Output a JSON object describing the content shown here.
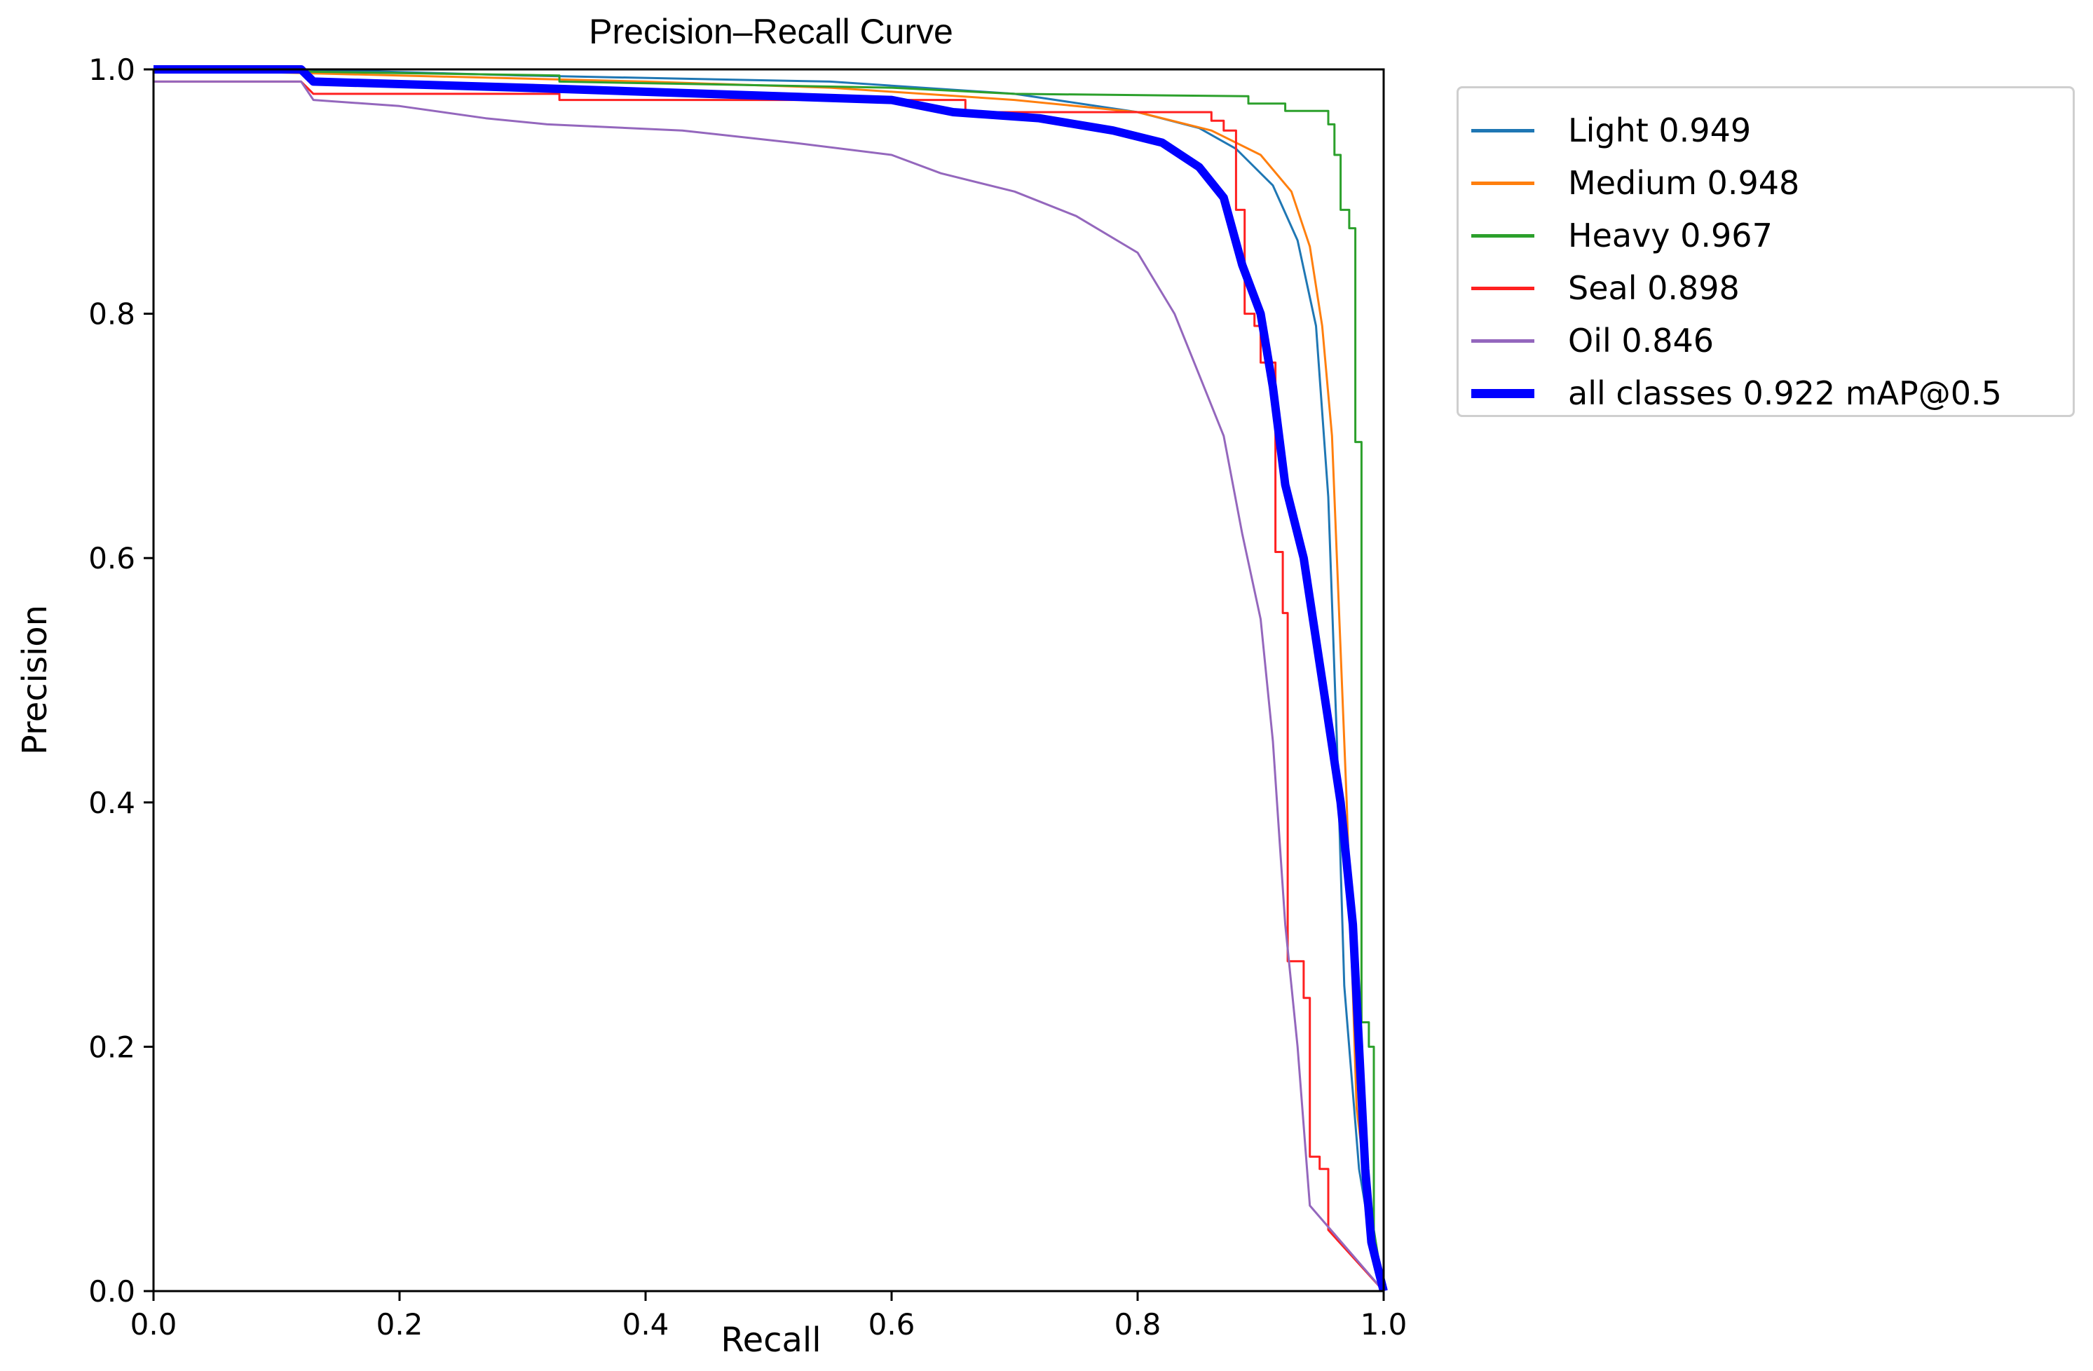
{
  "chart_data": {
    "type": "line",
    "title": "Precision–Recall Curve",
    "xlabel": "Recall",
    "ylabel": "Precision",
    "xlim": [
      0,
      1
    ],
    "ylim": [
      0,
      1
    ],
    "xticks": [
      "0.0",
      "0.2",
      "0.4",
      "0.6",
      "0.8",
      "1.0"
    ],
    "yticks": [
      "0.0",
      "0.2",
      "0.4",
      "0.6",
      "0.8",
      "1.0"
    ],
    "grid": false,
    "legend_position": "outside upper right",
    "series": [
      {
        "name": "Light 0.949",
        "color": "#1f77b4",
        "width": 3,
        "points": [
          [
            0,
            1.0
          ],
          [
            0.12,
            1.0
          ],
          [
            0.3,
            0.995
          ],
          [
            0.55,
            0.99
          ],
          [
            0.7,
            0.98
          ],
          [
            0.8,
            0.965
          ],
          [
            0.85,
            0.952
          ],
          [
            0.88,
            0.935
          ],
          [
            0.91,
            0.905
          ],
          [
            0.93,
            0.86
          ],
          [
            0.945,
            0.79
          ],
          [
            0.955,
            0.65
          ],
          [
            0.962,
            0.45
          ],
          [
            0.968,
            0.25
          ],
          [
            0.98,
            0.1
          ],
          [
            0.99,
            0.04
          ],
          [
            1.0,
            0.0
          ]
        ]
      },
      {
        "name": "Medium 0.948",
        "color": "#ff7f0e",
        "width": 3,
        "points": [
          [
            0,
            1.0
          ],
          [
            0.2,
            0.995
          ],
          [
            0.4,
            0.99
          ],
          [
            0.55,
            0.985
          ],
          [
            0.7,
            0.975
          ],
          [
            0.8,
            0.965
          ],
          [
            0.86,
            0.95
          ],
          [
            0.9,
            0.93
          ],
          [
            0.925,
            0.9
          ],
          [
            0.94,
            0.855
          ],
          [
            0.95,
            0.79
          ],
          [
            0.958,
            0.7
          ],
          [
            0.962,
            0.6
          ],
          [
            0.97,
            0.4
          ],
          [
            0.978,
            0.15
          ],
          [
            0.99,
            0.05
          ],
          [
            1.0,
            0.0
          ]
        ]
      },
      {
        "name": "Heavy 0.967",
        "color": "#2ca02c",
        "width": 3,
        "points": [
          [
            0,
            1.0
          ],
          [
            0.33,
            0.995
          ],
          [
            0.33,
            0.99
          ],
          [
            0.6,
            0.985
          ],
          [
            0.7,
            0.98
          ],
          [
            0.89,
            0.978
          ],
          [
            0.89,
            0.972
          ],
          [
            0.92,
            0.972
          ],
          [
            0.92,
            0.966
          ],
          [
            0.955,
            0.966
          ],
          [
            0.955,
            0.955
          ],
          [
            0.96,
            0.955
          ],
          [
            0.96,
            0.93
          ],
          [
            0.965,
            0.93
          ],
          [
            0.965,
            0.885
          ],
          [
            0.972,
            0.885
          ],
          [
            0.972,
            0.87
          ],
          [
            0.977,
            0.87
          ],
          [
            0.977,
            0.695
          ],
          [
            0.982,
            0.695
          ],
          [
            0.982,
            0.22
          ],
          [
            0.988,
            0.22
          ],
          [
            0.988,
            0.2
          ],
          [
            0.992,
            0.2
          ],
          [
            0.992,
            0.05
          ],
          [
            1.0,
            0.0
          ]
        ]
      },
      {
        "name": "Seal 0.898",
        "color": "#ff2020",
        "width": 3,
        "points": [
          [
            0,
            0.99
          ],
          [
            0.12,
            0.99
          ],
          [
            0.13,
            0.98
          ],
          [
            0.33,
            0.98
          ],
          [
            0.33,
            0.975
          ],
          [
            0.66,
            0.975
          ],
          [
            0.66,
            0.965
          ],
          [
            0.86,
            0.965
          ],
          [
            0.86,
            0.958
          ],
          [
            0.87,
            0.958
          ],
          [
            0.87,
            0.95
          ],
          [
            0.88,
            0.95
          ],
          [
            0.88,
            0.885
          ],
          [
            0.887,
            0.885
          ],
          [
            0.887,
            0.8
          ],
          [
            0.895,
            0.8
          ],
          [
            0.895,
            0.79
          ],
          [
            0.9,
            0.79
          ],
          [
            0.9,
            0.76
          ],
          [
            0.912,
            0.76
          ],
          [
            0.912,
            0.605
          ],
          [
            0.918,
            0.605
          ],
          [
            0.918,
            0.555
          ],
          [
            0.922,
            0.555
          ],
          [
            0.922,
            0.27
          ],
          [
            0.935,
            0.27
          ],
          [
            0.935,
            0.24
          ],
          [
            0.94,
            0.24
          ],
          [
            0.94,
            0.11
          ],
          [
            0.948,
            0.11
          ],
          [
            0.948,
            0.1
          ],
          [
            0.955,
            0.1
          ],
          [
            0.955,
            0.05
          ],
          [
            1.0,
            0.0
          ]
        ]
      },
      {
        "name": "Oil 0.846",
        "color": "#9467bd",
        "width": 3,
        "points": [
          [
            0,
            0.99
          ],
          [
            0.12,
            0.99
          ],
          [
            0.13,
            0.975
          ],
          [
            0.2,
            0.97
          ],
          [
            0.27,
            0.96
          ],
          [
            0.32,
            0.955
          ],
          [
            0.43,
            0.95
          ],
          [
            0.52,
            0.94
          ],
          [
            0.6,
            0.93
          ],
          [
            0.64,
            0.915
          ],
          [
            0.7,
            0.9
          ],
          [
            0.75,
            0.88
          ],
          [
            0.8,
            0.85
          ],
          [
            0.83,
            0.8
          ],
          [
            0.85,
            0.75
          ],
          [
            0.87,
            0.7
          ],
          [
            0.885,
            0.62
          ],
          [
            0.9,
            0.55
          ],
          [
            0.91,
            0.45
          ],
          [
            0.92,
            0.3
          ],
          [
            0.93,
            0.2
          ],
          [
            0.94,
            0.07
          ],
          [
            1.0,
            0.0
          ]
        ]
      },
      {
        "name": "all classes 0.922 mAP@0.5",
        "color": "#0000ff",
        "width": 12,
        "points": [
          [
            0,
            1.0
          ],
          [
            0.12,
            1.0
          ],
          [
            0.13,
            0.99
          ],
          [
            0.3,
            0.985
          ],
          [
            0.45,
            0.98
          ],
          [
            0.6,
            0.975
          ],
          [
            0.65,
            0.965
          ],
          [
            0.72,
            0.96
          ],
          [
            0.78,
            0.95
          ],
          [
            0.82,
            0.94
          ],
          [
            0.85,
            0.92
          ],
          [
            0.87,
            0.895
          ],
          [
            0.885,
            0.84
          ],
          [
            0.9,
            0.8
          ],
          [
            0.91,
            0.74
          ],
          [
            0.92,
            0.66
          ],
          [
            0.935,
            0.6
          ],
          [
            0.95,
            0.5
          ],
          [
            0.965,
            0.4
          ],
          [
            0.975,
            0.3
          ],
          [
            0.98,
            0.2
          ],
          [
            0.985,
            0.1
          ],
          [
            0.99,
            0.04
          ],
          [
            1.0,
            0.0
          ]
        ]
      }
    ]
  }
}
